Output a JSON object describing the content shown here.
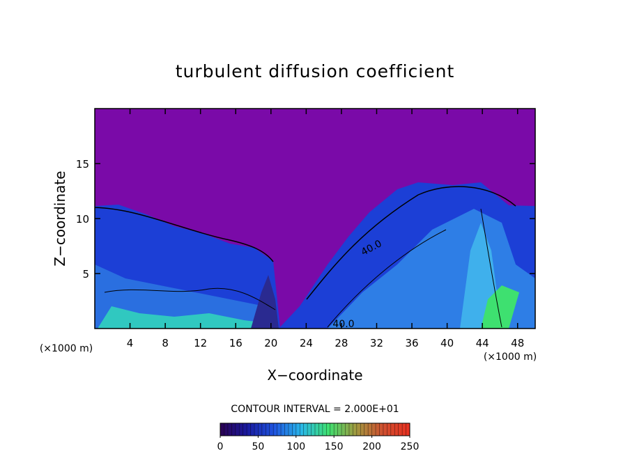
{
  "chart_data": {
    "type": "contour",
    "title": "turbulent diffusion coefficient",
    "x_label": "X−coordinate",
    "y_label": "Z−coordinate",
    "x_unit": "(×1000 m)",
    "y_unit": "(×1000 m)",
    "xlim": [
      0,
      50
    ],
    "ylim": [
      0,
      20
    ],
    "xticks": [
      4,
      8,
      12,
      16,
      20,
      24,
      28,
      32,
      36,
      40,
      44,
      48
    ],
    "yticks": [
      5,
      10,
      15
    ],
    "contour_interval_label": "CONTOUR INTERVAL = 2.000E+01",
    "contour_labels": [
      "40.0",
      "40.0"
    ],
    "colorbar": {
      "lim": [
        0,
        250
      ],
      "ticks": [
        0,
        50,
        100,
        150,
        200,
        250
      ],
      "colors": [
        "#2a0050",
        "#1a1aa0",
        "#1f55e0",
        "#2ab8e8",
        "#3ee070",
        "#a09a40",
        "#d05030",
        "#e83020"
      ]
    }
  }
}
